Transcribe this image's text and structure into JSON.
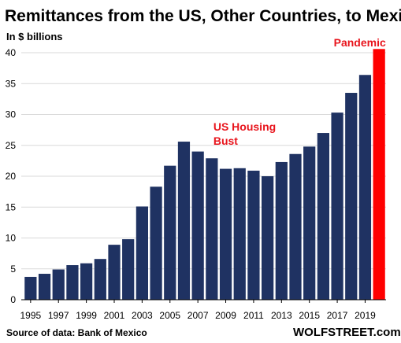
{
  "chart_data": {
    "type": "bar",
    "title": "Remittances from the US, Other Countries, to Mexico",
    "ylabel": "In $ billions",
    "xlabel": "",
    "ylim": [
      0,
      40
    ],
    "yticks": [
      "0",
      "5",
      "10",
      "15",
      "20",
      "25",
      "30",
      "35",
      "40"
    ],
    "grid": true,
    "categories": [
      "1995",
      "1996",
      "1997",
      "1998",
      "1999",
      "2000",
      "2001",
      "2002",
      "2003",
      "2004",
      "2005",
      "2006",
      "2007",
      "2008",
      "2009",
      "2010",
      "2011",
      "2012",
      "2013",
      "2014",
      "2015",
      "2016",
      "2017",
      "2018",
      "2019",
      "2020"
    ],
    "x_tick_labels": [
      "1995",
      "1997",
      "1999",
      "2001",
      "2003",
      "2005",
      "2007",
      "2009",
      "2011",
      "2013",
      "2015",
      "2017",
      "2019"
    ],
    "values": [
      3.7,
      4.2,
      4.9,
      5.6,
      5.9,
      6.6,
      8.9,
      9.8,
      15.1,
      18.3,
      21.7,
      25.6,
      24.0,
      22.9,
      21.2,
      21.3,
      20.9,
      20.0,
      22.3,
      23.6,
      24.8,
      27.0,
      30.3,
      33.5,
      36.4,
      40.6
    ],
    "colors": {
      "bar": "#1f3262",
      "highlight": "#ff0000",
      "annotation": "#e8141c"
    },
    "highlight_index": 25,
    "annotations": [
      {
        "text_lines": [
          "US Housing",
          "Bust"
        ],
        "anchor_category": "2008"
      },
      {
        "text_lines": [
          "Pandemic"
        ],
        "anchor_category": "2020"
      }
    ],
    "source": "Source of data: Bank of Mexico",
    "brand": "WOLFSTREET.com"
  }
}
